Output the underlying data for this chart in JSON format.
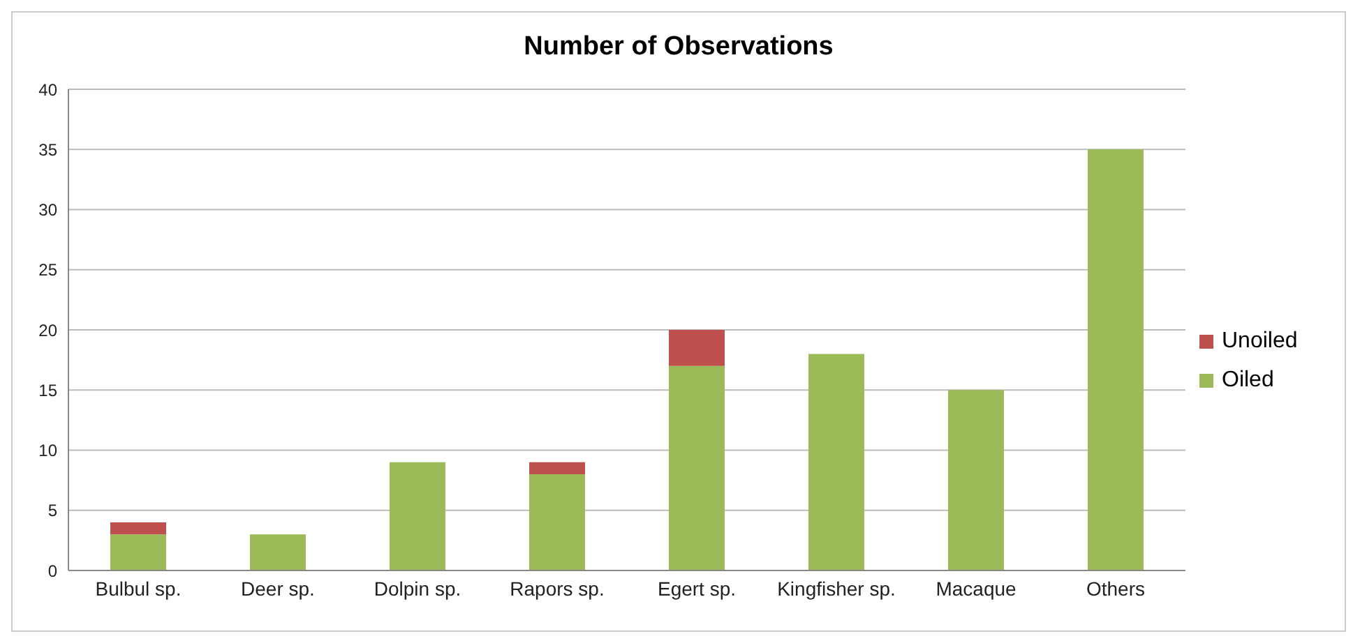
{
  "chart_data": {
    "type": "bar",
    "title": "Number of Observations",
    "categories": [
      "Bulbul sp.",
      "Deer sp.",
      "Dolpin sp.",
      "Rapors sp.",
      "Egert sp.",
      "Kingfisher sp.",
      "Macaque",
      "Others"
    ],
    "stacked": true,
    "series": [
      {
        "name": "Oiled",
        "color": "#9bbb59",
        "values": [
          3,
          3,
          9,
          8,
          17,
          18,
          15,
          35
        ]
      },
      {
        "name": "Unoiled",
        "color": "#c0504d",
        "values": [
          1,
          0,
          0,
          1,
          3,
          0,
          0,
          0
        ]
      }
    ],
    "ylim": [
      0,
      40
    ],
    "yticks": [
      0,
      5,
      10,
      15,
      20,
      25,
      30,
      35,
      40
    ],
    "grid": "y",
    "legend": "right"
  }
}
